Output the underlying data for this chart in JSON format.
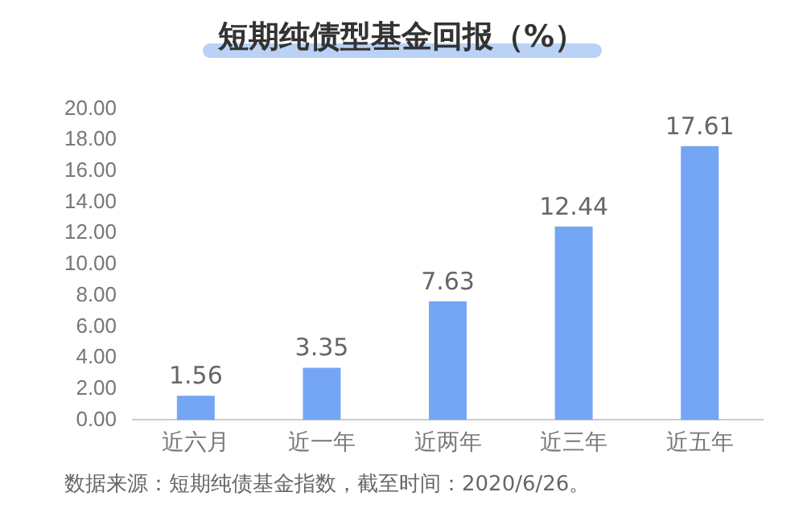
{
  "chart_data": {
    "type": "bar",
    "title": "短期纯债型基金回报（%）",
    "categories": [
      "近六月",
      "近一年",
      "近两年",
      "近三年",
      "近五年"
    ],
    "values": [
      1.56,
      3.35,
      7.63,
      12.44,
      17.61
    ],
    "color": "#74a6f5",
    "ylim": [
      0,
      20
    ],
    "yticks": [
      {
        "value": 0,
        "label": "0.00"
      },
      {
        "value": 2,
        "label": "2.00"
      },
      {
        "value": 4,
        "label": "4.00"
      },
      {
        "value": 6,
        "label": "6.00"
      },
      {
        "value": 8,
        "label": "8.00"
      },
      {
        "value": 10,
        "label": "10.00"
      },
      {
        "value": 12,
        "label": "12.00"
      },
      {
        "value": 14,
        "label": "14.00"
      },
      {
        "value": 16,
        "label": "16.00"
      },
      {
        "value": 18,
        "label": "18.00"
      },
      {
        "value": 20,
        "label": "20.00"
      }
    ],
    "grid": false,
    "data_labels": true,
    "annotations": [
      "数据来源：短期纯债基金指数，截至时间：2020/6/26。"
    ]
  }
}
